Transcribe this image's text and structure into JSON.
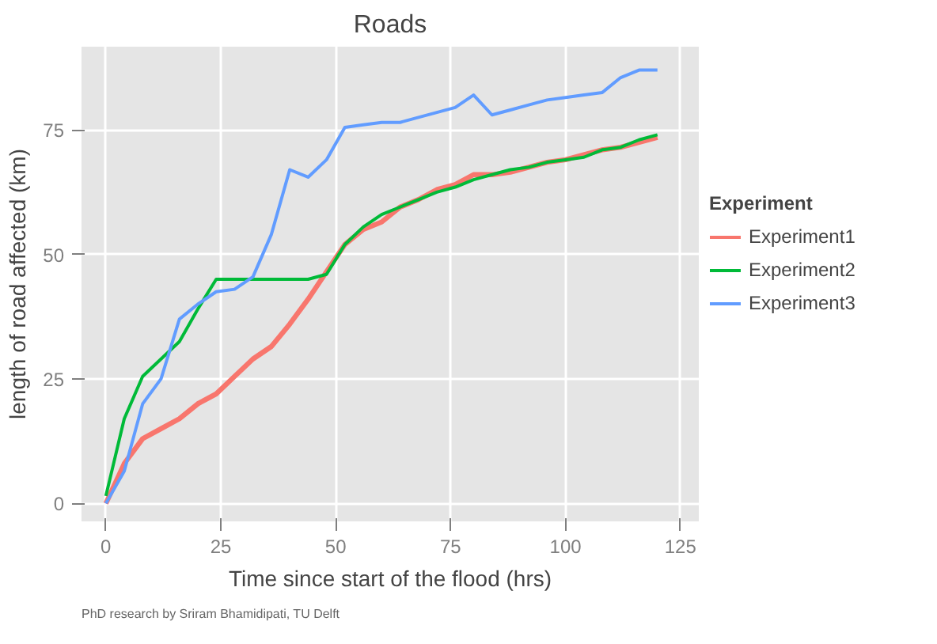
{
  "chart_data": {
    "type": "line",
    "title": "Roads",
    "xlabel": "Time since start of the flood (hrs)",
    "ylabel": "length of road affected (km)",
    "legend_title": "Experiment",
    "legend": "right",
    "grid": true,
    "x": [
      0,
      4,
      8,
      12,
      16,
      20,
      24,
      28,
      32,
      36,
      40,
      44,
      48,
      52,
      56,
      60,
      64,
      68,
      72,
      76,
      80,
      84,
      88,
      92,
      96,
      100,
      104,
      108,
      112,
      116,
      120
    ],
    "xlim": [
      -5.3,
      129
    ],
    "xticks": [
      0,
      25,
      50,
      75,
      100,
      125
    ],
    "ylim": [
      -3.6,
      91.7
    ],
    "yticks": [
      0,
      25,
      50,
      75
    ],
    "series": [
      {
        "name": "Experiment1",
        "color": "#f8766d",
        "values": [
          0,
          8,
          13,
          15,
          17,
          20,
          22,
          25.5,
          29,
          31.5,
          36,
          41,
          46.5,
          52,
          55,
          56.5,
          59.5,
          61,
          63,
          64,
          66,
          66,
          66.5,
          67.5,
          68.5,
          69,
          70,
          71,
          71.5,
          72.5,
          73.5
        ]
      },
      {
        "name": "Experiment2",
        "color": "#00ba38",
        "values": [
          1.5,
          17,
          25.5,
          29,
          32.5,
          39,
          45,
          45,
          45,
          45,
          45,
          45,
          46,
          52,
          55.5,
          58,
          59.5,
          61,
          62.5,
          63.5,
          65,
          66,
          67,
          67.5,
          68.5,
          69,
          69.5,
          71,
          71.5,
          73,
          74
        ]
      },
      {
        "name": "Experiment3",
        "color": "#619cff",
        "values": [
          0,
          6.5,
          20,
          25,
          37,
          40,
          42.5,
          43,
          45.5,
          54,
          67,
          65.5,
          69,
          75.5,
          76,
          76.5,
          76.5,
          77.5,
          78.5,
          79.5,
          82,
          78,
          79,
          80,
          81,
          81.5,
          82,
          82.5,
          85.5,
          87,
          87
        ]
      }
    ],
    "annotations": [
      "PhD research by Sriram Bhamidipati, TU Delft"
    ]
  }
}
